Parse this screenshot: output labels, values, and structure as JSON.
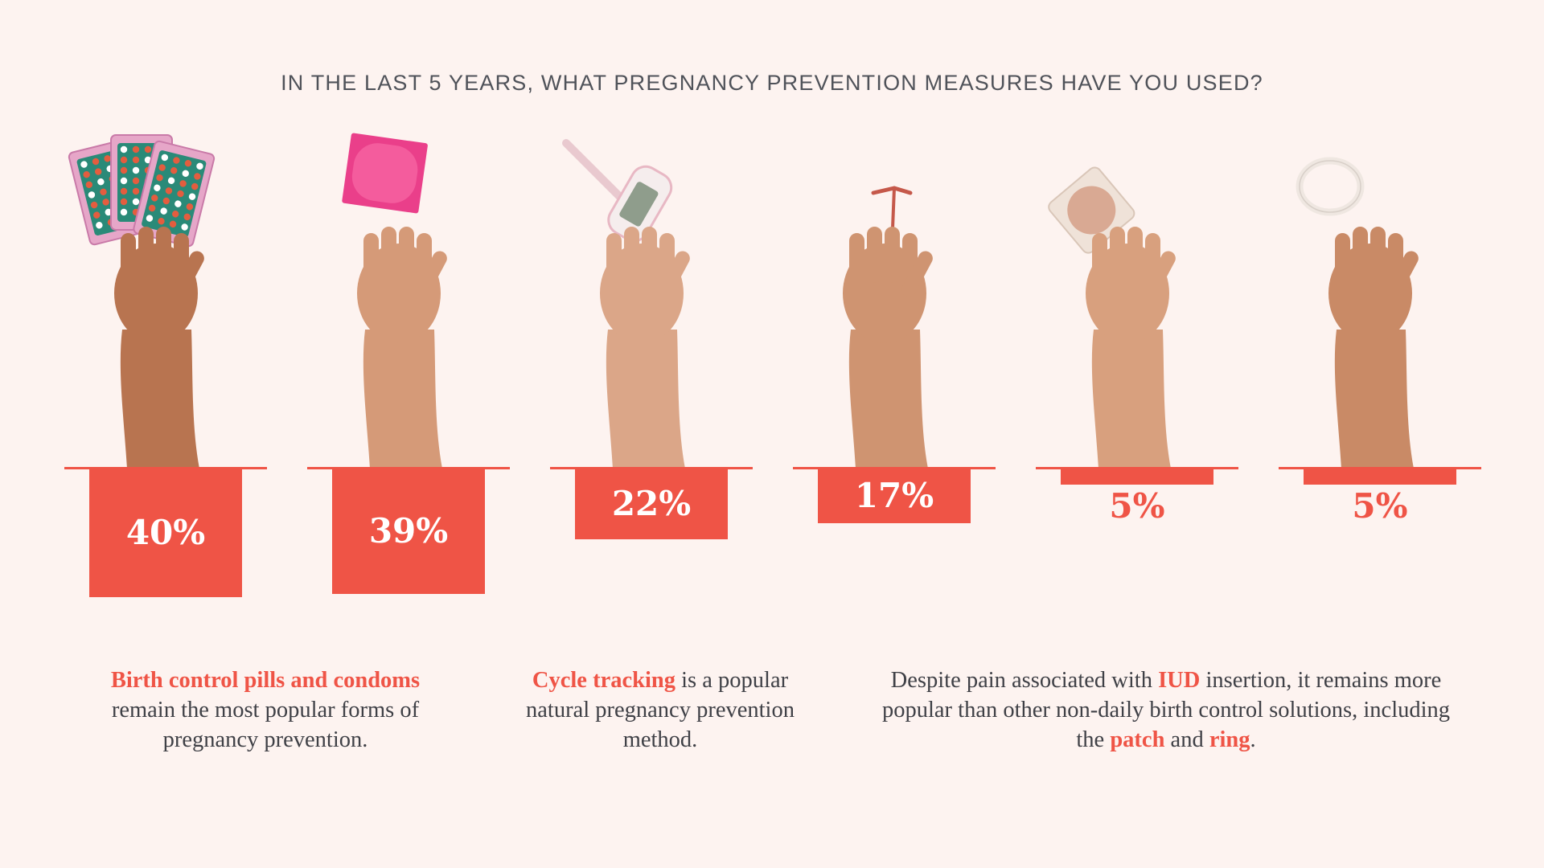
{
  "title": "IN THE LAST 5 YEARS, WHAT PREGNANCY PREVENTION MEASURES HAVE YOU USED?",
  "colors": {
    "background": "#fdf3f0",
    "accent": "#ef5446",
    "title_text": "#4f5259",
    "body_text": "#3f4046",
    "bar_label_on_bar": "#ffffff"
  },
  "chart_data": {
    "type": "bar",
    "title": "IN THE LAST 5 YEARS, WHAT PREGNANCY PREVENTION MEASURES HAVE YOU USED?",
    "categories": [
      "Birth control pills",
      "Condoms",
      "Cycle tracking",
      "IUD",
      "Patch",
      "Ring"
    ],
    "values": [
      40,
      39,
      22,
      17,
      5,
      5
    ],
    "labels": [
      "40%",
      "39%",
      "22%",
      "17%",
      "5%",
      "5%"
    ],
    "unit": "%",
    "orientation": "vertical-downward",
    "ylim": [
      0,
      40
    ],
    "grid": false,
    "legend": "none",
    "icons": [
      "pill-pack-icon",
      "condom-icon",
      "thermometer-icon",
      "iud-icon",
      "patch-icon",
      "ring-icon"
    ]
  },
  "captions": {
    "pills_condoms": {
      "highlight": "Birth control pills and condoms",
      "rest": "remain the most popular forms of pregnancy prevention."
    },
    "cycle": {
      "highlight": "Cycle tracking",
      "rest": " is a popular natural pregnancy prevention method."
    },
    "iud": {
      "part1": "Despite pain associated with ",
      "iud": "IUD",
      "part2": " insertion, it remains more popular than other non-daily birth control solutions, including the ",
      "patch": "patch",
      "part3": " and ",
      "ring": "ring",
      "part4": "."
    }
  }
}
